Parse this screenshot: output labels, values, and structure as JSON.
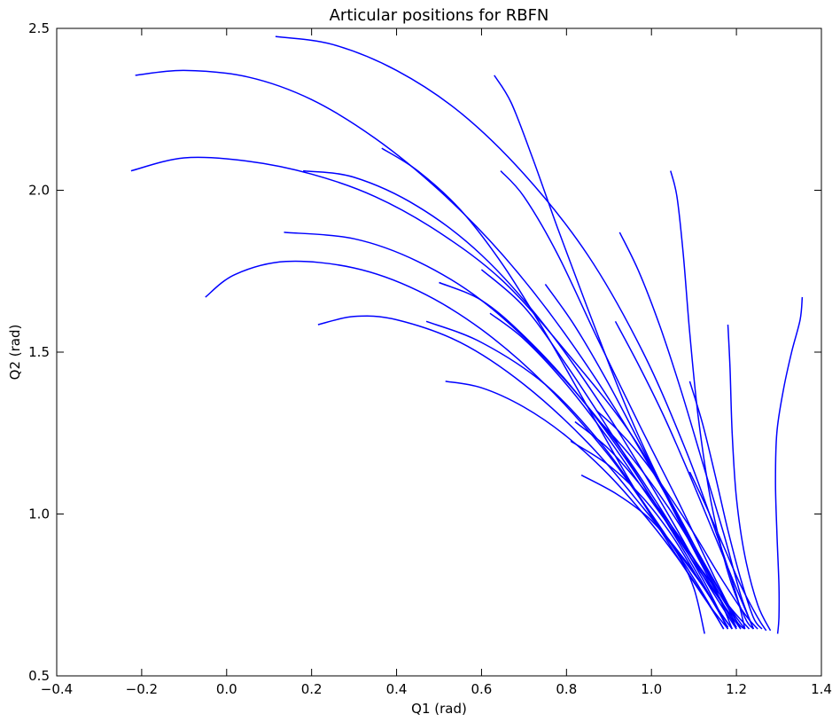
{
  "chart_data": {
    "type": "line",
    "title": "Articular positions for RBFN",
    "xlabel": "Q1 (rad)",
    "ylabel": "Q2 (rad)",
    "xlim": [
      -0.4,
      1.4
    ],
    "ylim": [
      0.5,
      2.5
    ],
    "xticks": [
      -0.4,
      -0.2,
      0.0,
      0.2,
      0.4,
      0.6,
      0.8,
      1.0,
      1.2,
      1.4
    ],
    "xtick_labels": [
      "−0.4",
      "−0.2",
      "0.0",
      "0.2",
      "0.4",
      "0.6",
      "0.8",
      "1.0",
      "1.2",
      "1.4"
    ],
    "yticks": [
      0.5,
      1.0,
      1.5,
      2.0,
      2.5
    ],
    "ytick_labels": [
      "0.5",
      "1.0",
      "1.5",
      "2.0",
      "2.5"
    ],
    "grid": false,
    "line_color": "#0000ff",
    "series": [
      {
        "points": [
          [
            0.115,
            2.475
          ],
          [
            0.25,
            2.45
          ],
          [
            0.4,
            2.37
          ],
          [
            0.55,
            2.24
          ],
          [
            0.7,
            2.05
          ],
          [
            0.85,
            1.8
          ],
          [
            0.98,
            1.5
          ],
          [
            1.08,
            1.2
          ],
          [
            1.15,
            0.95
          ],
          [
            1.2,
            0.75
          ],
          [
            1.22,
            0.645
          ]
        ]
      },
      {
        "points": [
          [
            -0.215,
            2.355
          ],
          [
            -0.1,
            2.37
          ],
          [
            0.05,
            2.35
          ],
          [
            0.2,
            2.28
          ],
          [
            0.35,
            2.16
          ],
          [
            0.5,
            2.0
          ],
          [
            0.65,
            1.8
          ],
          [
            0.8,
            1.55
          ],
          [
            0.95,
            1.25
          ],
          [
            1.08,
            0.95
          ],
          [
            1.17,
            0.74
          ],
          [
            1.2,
            0.645
          ]
        ]
      },
      {
        "points": [
          [
            -0.225,
            2.06
          ],
          [
            -0.1,
            2.1
          ],
          [
            0.05,
            2.09
          ],
          [
            0.2,
            2.05
          ],
          [
            0.35,
            1.98
          ],
          [
            0.5,
            1.87
          ],
          [
            0.65,
            1.72
          ],
          [
            0.8,
            1.5
          ],
          [
            0.95,
            1.25
          ],
          [
            1.07,
            0.98
          ],
          [
            1.15,
            0.77
          ],
          [
            1.19,
            0.645
          ]
        ]
      },
      {
        "points": [
          [
            -0.05,
            1.67
          ],
          [
            0.02,
            1.74
          ],
          [
            0.14,
            1.78
          ],
          [
            0.3,
            1.76
          ],
          [
            0.45,
            1.69
          ],
          [
            0.6,
            1.57
          ],
          [
            0.75,
            1.4
          ],
          [
            0.9,
            1.18
          ],
          [
            1.03,
            0.94
          ],
          [
            1.13,
            0.76
          ],
          [
            1.18,
            0.645
          ]
        ]
      },
      {
        "points": [
          [
            0.135,
            1.87
          ],
          [
            0.3,
            1.85
          ],
          [
            0.45,
            1.78
          ],
          [
            0.6,
            1.66
          ],
          [
            0.75,
            1.48
          ],
          [
            0.9,
            1.25
          ],
          [
            1.02,
            1.02
          ],
          [
            1.12,
            0.8
          ],
          [
            1.18,
            0.645
          ]
        ]
      },
      {
        "points": [
          [
            0.18,
            2.06
          ],
          [
            0.3,
            2.04
          ],
          [
            0.45,
            1.95
          ],
          [
            0.6,
            1.8
          ],
          [
            0.75,
            1.58
          ],
          [
            0.9,
            1.3
          ],
          [
            1.03,
            1.02
          ],
          [
            1.13,
            0.79
          ],
          [
            1.2,
            0.645
          ]
        ]
      },
      {
        "points": [
          [
            0.215,
            1.585
          ],
          [
            0.3,
            1.61
          ],
          [
            0.4,
            1.6
          ],
          [
            0.55,
            1.53
          ],
          [
            0.7,
            1.4
          ],
          [
            0.85,
            1.22
          ],
          [
            0.98,
            1.02
          ],
          [
            1.1,
            0.82
          ],
          [
            1.18,
            0.65
          ]
        ]
      },
      {
        "points": [
          [
            0.515,
            1.41
          ],
          [
            0.6,
            1.39
          ],
          [
            0.7,
            1.33
          ],
          [
            0.8,
            1.24
          ],
          [
            0.9,
            1.12
          ],
          [
            1.0,
            0.97
          ],
          [
            1.08,
            0.83
          ],
          [
            1.14,
            0.71
          ],
          [
            1.17,
            0.645
          ]
        ]
      },
      {
        "points": [
          [
            0.365,
            2.13
          ],
          [
            0.45,
            2.06
          ],
          [
            0.55,
            1.94
          ],
          [
            0.65,
            1.77
          ],
          [
            0.75,
            1.56
          ],
          [
            0.85,
            1.33
          ],
          [
            0.95,
            1.1
          ],
          [
            1.05,
            0.89
          ],
          [
            1.13,
            0.73
          ],
          [
            1.18,
            0.645
          ]
        ]
      },
      {
        "points": [
          [
            0.47,
            1.595
          ],
          [
            0.6,
            1.53
          ],
          [
            0.75,
            1.4
          ],
          [
            0.88,
            1.22
          ],
          [
            1.0,
            1.0
          ],
          [
            1.1,
            0.8
          ],
          [
            1.17,
            0.645
          ]
        ]
      },
      {
        "points": [
          [
            0.5,
            1.715
          ],
          [
            0.6,
            1.66
          ],
          [
            0.7,
            1.55
          ],
          [
            0.82,
            1.38
          ],
          [
            0.95,
            1.15
          ],
          [
            1.07,
            0.9
          ],
          [
            1.15,
            0.72
          ],
          [
            1.19,
            0.645
          ]
        ]
      },
      {
        "points": [
          [
            0.6,
            1.755
          ],
          [
            0.7,
            1.64
          ],
          [
            0.8,
            1.46
          ],
          [
            0.9,
            1.26
          ],
          [
            1.0,
            1.05
          ],
          [
            1.1,
            0.85
          ],
          [
            1.18,
            0.7
          ],
          [
            1.21,
            0.645
          ]
        ]
      },
      {
        "points": [
          [
            0.63,
            2.355
          ],
          [
            0.67,
            2.27
          ],
          [
            0.72,
            2.1
          ],
          [
            0.78,
            1.88
          ],
          [
            0.86,
            1.6
          ],
          [
            0.95,
            1.3
          ],
          [
            1.05,
            1.02
          ],
          [
            1.14,
            0.8
          ],
          [
            1.2,
            0.67
          ],
          [
            1.22,
            0.645
          ]
        ]
      },
      {
        "points": [
          [
            0.645,
            2.06
          ],
          [
            0.7,
            1.98
          ],
          [
            0.78,
            1.8
          ],
          [
            0.87,
            1.55
          ],
          [
            0.97,
            1.28
          ],
          [
            1.07,
            1.02
          ],
          [
            1.15,
            0.8
          ],
          [
            1.21,
            0.645
          ]
        ]
      },
      {
        "points": [
          [
            0.75,
            1.71
          ],
          [
            0.82,
            1.58
          ],
          [
            0.9,
            1.4
          ],
          [
            0.98,
            1.2
          ],
          [
            1.06,
            0.99
          ],
          [
            1.14,
            0.79
          ],
          [
            1.2,
            0.65
          ]
        ]
      },
      {
        "points": [
          [
            0.81,
            1.225
          ],
          [
            0.9,
            1.15
          ],
          [
            0.98,
            1.05
          ],
          [
            1.05,
            0.93
          ],
          [
            1.11,
            0.8
          ],
          [
            1.16,
            0.7
          ],
          [
            1.19,
            0.645
          ]
        ]
      },
      {
        "points": [
          [
            0.835,
            1.12
          ],
          [
            0.92,
            1.06
          ],
          [
            1.0,
            0.98
          ],
          [
            1.06,
            0.88
          ],
          [
            1.1,
            0.77
          ],
          [
            1.125,
            0.63
          ]
        ]
      },
      {
        "points": [
          [
            0.82,
            1.285
          ],
          [
            0.9,
            1.2
          ],
          [
            0.98,
            1.08
          ],
          [
            1.06,
            0.94
          ],
          [
            1.14,
            0.78
          ],
          [
            1.2,
            0.65
          ]
        ]
      },
      {
        "points": [
          [
            0.865,
            1.305
          ],
          [
            0.95,
            1.18
          ],
          [
            1.04,
            1.02
          ],
          [
            1.12,
            0.85
          ],
          [
            1.19,
            0.7
          ],
          [
            1.22,
            0.645
          ]
        ]
      },
      {
        "points": [
          [
            0.915,
            1.595
          ],
          [
            0.97,
            1.46
          ],
          [
            1.03,
            1.3
          ],
          [
            1.09,
            1.12
          ],
          [
            1.15,
            0.93
          ],
          [
            1.2,
            0.77
          ],
          [
            1.24,
            0.645
          ]
        ]
      },
      {
        "points": [
          [
            0.925,
            1.87
          ],
          [
            0.97,
            1.75
          ],
          [
            1.02,
            1.58
          ],
          [
            1.07,
            1.38
          ],
          [
            1.12,
            1.16
          ],
          [
            1.17,
            0.94
          ],
          [
            1.21,
            0.75
          ],
          [
            1.24,
            0.645
          ]
        ]
      },
      {
        "points": [
          [
            1.045,
            2.06
          ],
          [
            1.06,
            1.98
          ],
          [
            1.075,
            1.8
          ],
          [
            1.09,
            1.56
          ],
          [
            1.11,
            1.3
          ],
          [
            1.14,
            1.04
          ],
          [
            1.18,
            0.82
          ],
          [
            1.22,
            0.68
          ],
          [
            1.24,
            0.645
          ]
        ]
      },
      {
        "points": [
          [
            1.09,
            1.41
          ],
          [
            1.12,
            1.28
          ],
          [
            1.15,
            1.12
          ],
          [
            1.18,
            0.95
          ],
          [
            1.21,
            0.8
          ],
          [
            1.24,
            0.68
          ],
          [
            1.26,
            0.645
          ]
        ]
      },
      {
        "points": [
          [
            1.09,
            1.13
          ],
          [
            1.13,
            1.02
          ],
          [
            1.17,
            0.9
          ],
          [
            1.21,
            0.78
          ],
          [
            1.25,
            0.68
          ],
          [
            1.27,
            0.64
          ]
        ]
      },
      {
        "points": [
          [
            1.18,
            1.585
          ],
          [
            1.185,
            1.45
          ],
          [
            1.19,
            1.25
          ],
          [
            1.2,
            1.05
          ],
          [
            1.22,
            0.87
          ],
          [
            1.25,
            0.72
          ],
          [
            1.28,
            0.64
          ]
        ]
      },
      {
        "points": [
          [
            1.355,
            1.67
          ],
          [
            1.35,
            1.6
          ],
          [
            1.33,
            1.5
          ],
          [
            1.31,
            1.38
          ],
          [
            1.295,
            1.25
          ],
          [
            1.292,
            1.1
          ],
          [
            1.295,
            0.95
          ],
          [
            1.3,
            0.78
          ],
          [
            1.3,
            0.68
          ],
          [
            1.297,
            0.63
          ]
        ]
      },
      {
        "points": [
          [
            0.87,
            1.32
          ],
          [
            0.92,
            1.26
          ],
          [
            0.98,
            1.17
          ],
          [
            1.04,
            1.06
          ],
          [
            1.1,
            0.94
          ],
          [
            1.16,
            0.81
          ],
          [
            1.22,
            0.69
          ],
          [
            1.25,
            0.645
          ]
        ]
      },
      {
        "points": [
          [
            0.62,
            1.62
          ],
          [
            0.7,
            1.54
          ],
          [
            0.8,
            1.4
          ],
          [
            0.9,
            1.23
          ],
          [
            1.0,
            1.04
          ],
          [
            1.1,
            0.86
          ],
          [
            1.18,
            0.72
          ],
          [
            1.23,
            0.645
          ]
        ]
      }
    ]
  }
}
